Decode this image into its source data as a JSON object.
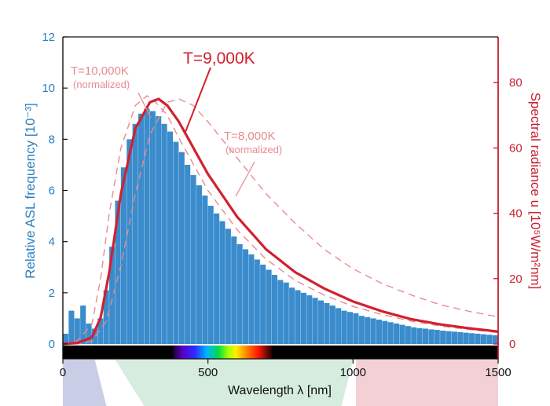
{
  "chart_data": {
    "type": "bar",
    "xlabel": "Wavelength λ [nm]",
    "ylabel": "Relative ASL frequency [10⁻³]",
    "y2label": "Spectral radiance u [10⁵W/m²nm]",
    "xlim": [
      0,
      1500
    ],
    "ylim": [
      0,
      12
    ],
    "y2lim": [
      0,
      94
    ],
    "xticks": [
      0,
      500,
      1000,
      1500
    ],
    "yticks": [
      0,
      2,
      4,
      6,
      8,
      10,
      12
    ],
    "y2ticks": [
      0,
      20,
      40,
      60,
      80
    ],
    "grid": false,
    "series": [
      {
        "kind": "histogram",
        "axis": "left",
        "color": "#3a8ccc",
        "x": [
          10,
          30,
          50,
          70,
          90,
          110,
          130,
          150,
          170,
          190,
          210,
          230,
          250,
          270,
          290,
          310,
          330,
          350,
          370,
          390,
          410,
          430,
          450,
          470,
          490,
          510,
          530,
          550,
          570,
          590,
          610,
          630,
          650,
          670,
          690,
          710,
          730,
          750,
          770,
          790,
          810,
          830,
          850,
          870,
          890,
          910,
          930,
          950,
          970,
          990,
          1010,
          1030,
          1050,
          1070,
          1090,
          1110,
          1130,
          1150,
          1170,
          1190,
          1210,
          1230,
          1250,
          1270,
          1290,
          1310,
          1330,
          1350,
          1370,
          1390,
          1410,
          1430,
          1450,
          1470,
          1490
        ],
        "values": [
          0.4,
          1.3,
          1.0,
          1.5,
          0.8,
          0.6,
          1.0,
          2.1,
          3.8,
          5.6,
          6.9,
          8.0,
          8.6,
          9.0,
          9.2,
          9.1,
          8.9,
          8.6,
          8.3,
          7.9,
          7.5,
          7.0,
          6.6,
          6.2,
          5.8,
          5.4,
          5.1,
          4.8,
          4.5,
          4.2,
          3.9,
          3.7,
          3.5,
          3.3,
          3.1,
          2.9,
          2.7,
          2.5,
          2.4,
          2.2,
          2.1,
          2.0,
          1.9,
          1.8,
          1.7,
          1.6,
          1.5,
          1.4,
          1.3,
          1.25,
          1.2,
          1.1,
          1.05,
          1.0,
          0.95,
          0.9,
          0.85,
          0.8,
          0.75,
          0.7,
          0.65,
          0.62,
          0.6,
          0.57,
          0.55,
          0.52,
          0.5,
          0.48,
          0.46,
          0.44,
          0.42,
          0.4,
          0.38,
          0.36,
          0.34
        ]
      },
      {
        "kind": "line",
        "axis": "right",
        "color": "#d2202f",
        "dash": false,
        "label": "T=9,000K",
        "x": [
          0,
          50,
          100,
          130,
          160,
          200,
          250,
          300,
          330,
          360,
          400,
          450,
          500,
          600,
          700,
          800,
          900,
          1000,
          1100,
          1200,
          1300,
          1400,
          1500
        ],
        "values": [
          0,
          0.3,
          2,
          8,
          22,
          46,
          66,
          74,
          75,
          73,
          68,
          60,
          52,
          39,
          29,
          22,
          17,
          13,
          10,
          7.6,
          6,
          4.8,
          3.8
        ]
      },
      {
        "kind": "line",
        "axis": "right",
        "color": "#e88b90",
        "dash": true,
        "label": "T=10,000K",
        "note": "(normalized)",
        "x": [
          0,
          50,
          100,
          130,
          160,
          200,
          250,
          290,
          320,
          360,
          400,
          450,
          500,
          600,
          700,
          800,
          900,
          1000,
          1100,
          1200,
          1300,
          1400,
          1500
        ],
        "values": [
          0,
          1,
          6,
          20,
          40,
          60,
          73,
          76,
          74,
          70,
          63,
          55,
          47,
          35,
          26,
          19.5,
          15,
          11.5,
          9,
          7,
          5.5,
          4.4,
          3.5
        ]
      },
      {
        "kind": "line",
        "axis": "right",
        "color": "#e88b90",
        "dash": true,
        "label": "T=8,000K",
        "note": "(normalized)",
        "x": [
          0,
          50,
          100,
          150,
          200,
          250,
          300,
          360,
          400,
          450,
          500,
          600,
          700,
          800,
          900,
          1000,
          1100,
          1200,
          1300,
          1400,
          1500
        ],
        "values": [
          0,
          0.1,
          0.8,
          7,
          24,
          46,
          64,
          74,
          75,
          73,
          68,
          57,
          46,
          37,
          29,
          23,
          18.5,
          15,
          12,
          10,
          8.3
        ]
      }
    ],
    "annotations": [
      {
        "text": "T=9,000K",
        "series": "T=9,000K"
      },
      {
        "text": "T=10,000K",
        "sub": "(normalized)",
        "series": "T=10,000K"
      },
      {
        "text": "T=8,000K",
        "sub": "(normalized)",
        "series": "T=8,000K"
      }
    ],
    "spectrum_strip": {
      "x_range": [
        0,
        1500
      ],
      "visible_range": [
        380,
        720
      ],
      "background": "#000000"
    }
  },
  "colors": {
    "histogram": "#3a8ccc",
    "left_axis": "#2a7fbf",
    "right_axis": "#c8202f",
    "main_curve": "#d2202f",
    "normalized_curves": "#e88b90",
    "band_uv": "#c9cde6",
    "band_visible": "#d6ecdf",
    "band_ir": "#f2d0d6"
  }
}
